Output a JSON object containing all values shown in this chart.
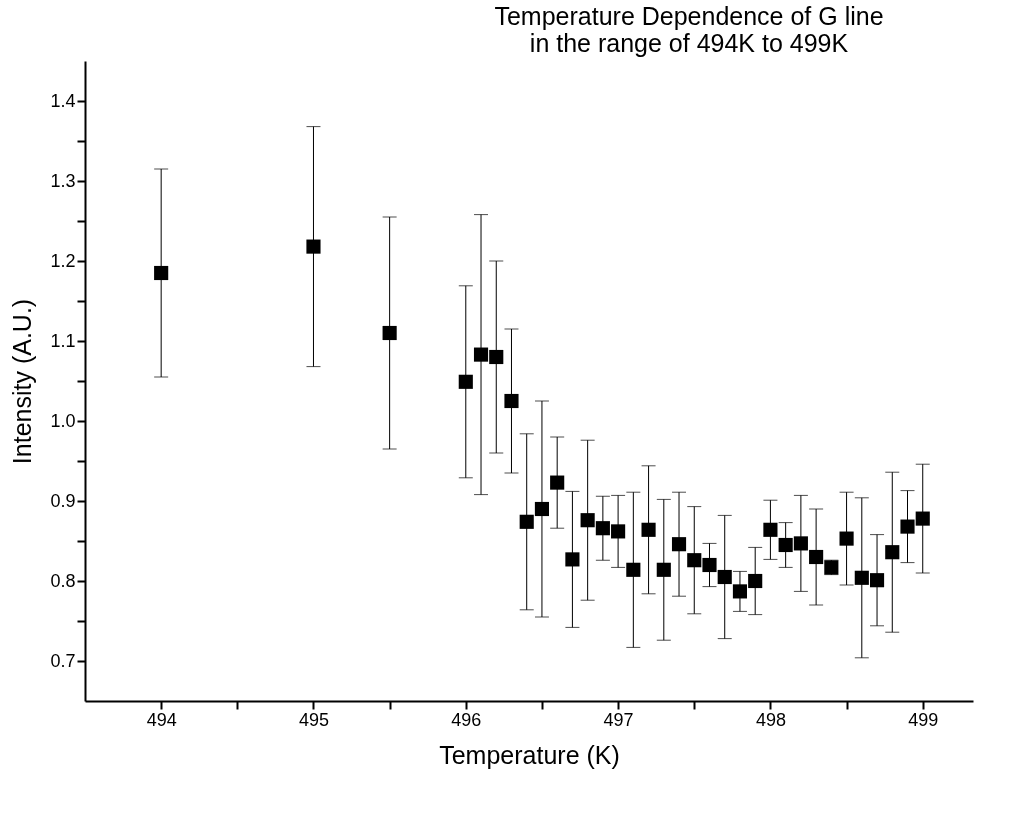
{
  "chart_data": {
    "type": "scatter",
    "title": "Temperature Dependence of G line\nin the range of 494K to 499K",
    "xlabel": "Temperature (K)",
    "ylabel": "Intensity (A.U.)",
    "x": [
      494,
      495,
      495.5,
      496,
      496.1,
      496.2,
      496.3,
      496.4,
      496.5,
      496.6,
      496.7,
      496.8,
      496.9,
      497,
      497.1,
      497.2,
      497.3,
      497.4,
      497.5,
      497.6,
      497.7,
      497.8,
      497.9,
      498,
      498.1,
      498.2,
      498.3,
      498.4,
      498.5,
      498.6,
      498.7,
      498.8,
      498.9,
      499
    ],
    "series": [
      {
        "color": "#000000",
        "values": [
          1.185,
          1.218,
          1.11,
          1.049,
          1.083,
          1.08,
          1.025,
          0.874,
          0.89,
          0.923,
          0.827,
          0.876,
          0.866,
          0.862,
          0.814,
          0.864,
          0.814,
          0.846,
          0.826,
          0.82,
          0.805,
          0.787,
          0.8,
          0.864,
          0.845,
          0.847,
          0.83,
          0.817,
          0.853,
          0.804,
          0.801,
          0.836,
          0.868,
          0.878
        ],
        "errors": [
          0.13,
          0.15,
          0.145,
          0.12,
          0.175,
          0.12,
          0.09,
          0.11,
          0.135,
          0.057,
          0.085,
          0.1,
          0.04,
          0.045,
          0.097,
          0.08,
          0.088,
          0.065,
          0.067,
          0.027,
          0.077,
          0.025,
          0.042,
          0.037,
          0.028,
          0.06,
          0.06,
          0.009,
          0.058,
          0.1,
          0.057,
          0.1,
          0.045,
          0.068
        ]
      }
    ],
    "xlim": [
      493.5,
      499.33
    ],
    "ylim": [
      0.65,
      1.45
    ],
    "xticks": [
      494,
      {
        "value": 494.5,
        "label": null
      },
      495,
      {
        "value": 495.5,
        "label": null
      },
      496,
      {
        "value": 496.5,
        "label": null
      },
      497,
      {
        "value": 497.5,
        "label": null
      },
      498,
      {
        "value": 498.5,
        "label": null
      },
      499
    ],
    "yticks": [
      0.7,
      {
        "value": 0.75,
        "label": null
      },
      0.8,
      {
        "value": 0.85,
        "label": null
      },
      0.9,
      {
        "value": 0.95,
        "label": null
      },
      {
        "value": 1.0,
        "label": "1.0"
      },
      {
        "value": 1.05,
        "label": null
      },
      1.1,
      {
        "value": 1.15,
        "label": null
      },
      1.2,
      {
        "value": 1.25,
        "label": null
      },
      1.3,
      {
        "value": 1.35,
        "label": null
      },
      1.4
    ],
    "marker": "square",
    "grid": false
  }
}
